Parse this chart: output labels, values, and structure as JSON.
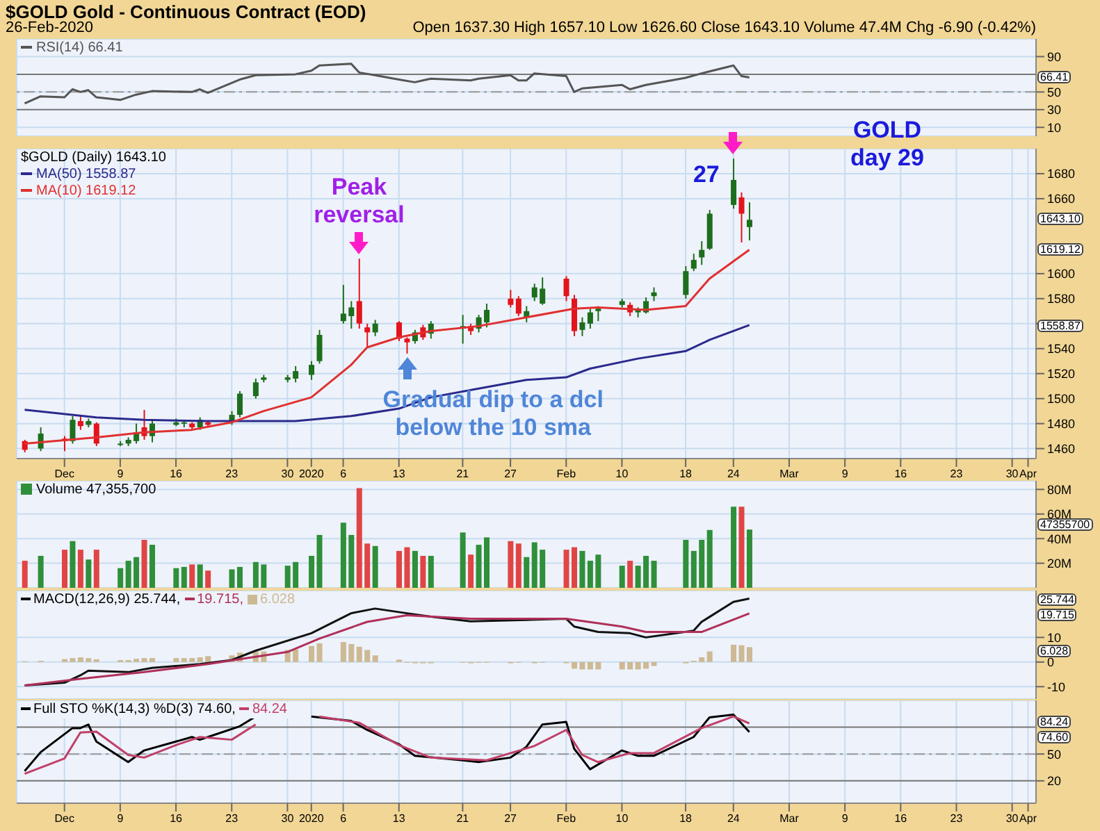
{
  "chart_data": [
    {
      "type": "line",
      "title": "$GOLD Gold - Continuous Contract (EOD)",
      "subtitle": "26-Feb-2020",
      "x": [
        "2019-11-27",
        "2019-11-29",
        "2019-12-02",
        "2019-12-03",
        "2019-12-04",
        "2019-12-05",
        "2019-12-06",
        "2019-12-09",
        "2019-12-11",
        "2019-12-13",
        "2019-12-18",
        "2019-12-19",
        "2019-12-20",
        "2019-12-24",
        "2019-12-26",
        "2019-12-31",
        "2020-01-02",
        "2020-01-03",
        "2020-01-07",
        "2020-01-08",
        "2020-01-10",
        "2020-01-13",
        "2020-01-15",
        "2020-01-16",
        "2020-01-17",
        "2020-01-22",
        "2020-01-23",
        "2020-01-27",
        "2020-01-28",
        "2020-01-29",
        "2020-01-30",
        "2020-02-03",
        "2020-02-04",
        "2020-02-05",
        "2020-02-10",
        "2020-02-11",
        "2020-02-13",
        "2020-02-18",
        "2020-02-20",
        "2020-02-24",
        "2020-02-25",
        "2020-02-26"
      ],
      "series": [
        {
          "name": "RSI(14) 66.41",
          "color": "#555555",
          "values": [
            37,
            45,
            44,
            53,
            50,
            52,
            44,
            41,
            47,
            51,
            50,
            53,
            49,
            64,
            69,
            70,
            74,
            80,
            82,
            72,
            69,
            64,
            61,
            63,
            65,
            63,
            65,
            69,
            63,
            63,
            71,
            68,
            50,
            54,
            58,
            53,
            58,
            66,
            71,
            80,
            68,
            66.41
          ]
        }
      ],
      "xlim": [
        "2019-11-26",
        "2020-04-02"
      ],
      "xticks": [
        {
          "value": "2019-12-02",
          "label": null
        },
        {
          "value": "2019-12-09",
          "label": null
        },
        {
          "value": "2019-12-16",
          "label": null
        },
        {
          "value": "2019-12-23",
          "label": null
        },
        {
          "value": "2019-12-30",
          "label": null
        },
        {
          "value": "2020-01-02",
          "label": null
        },
        {
          "value": "2020-01-06",
          "label": null
        },
        {
          "value": "2020-01-13",
          "label": null
        },
        {
          "value": "2020-01-21",
          "label": null
        },
        {
          "value": "2020-01-27",
          "label": null
        },
        {
          "value": "2020-02-03",
          "label": null
        },
        {
          "value": "2020-02-10",
          "label": null
        },
        {
          "value": "2020-02-18",
          "label": null
        },
        {
          "value": "2020-02-24",
          "label": null
        },
        {
          "value": "2020-03-02",
          "label": null
        },
        {
          "value": "2020-03-09",
          "label": null
        },
        {
          "value": "2020-03-16",
          "label": null
        },
        {
          "value": "2020-03-23",
          "label": null
        },
        {
          "value": "2020-03-30",
          "label": null
        },
        {
          "value": "2020-04-01",
          "label": null
        }
      ],
      "tick_labels": "y",
      "ylim": [
        0,
        110
      ],
      "yticks": [
        10,
        30,
        50,
        90
      ],
      "grid": true,
      "legend": "top left",
      "ref_lines": [
        {
          "axis": "y",
          "value": 70,
          "color": "#777777"
        },
        {
          "axis": "y",
          "value": 30,
          "color": "#777777"
        },
        {
          "axis": "y",
          "value": 50,
          "color": "#999999",
          "line_style": "dashed"
        }
      ],
      "annotations": [
        "Open 1637.30 High 1657.10 Low 1626.60 Close 1643.10 Volume 47.4M Chg -6.90 (-0.42%)",
        "66.41"
      ]
    },
    {
      "type": "candlestick",
      "title": "$GOLD (Daily) 1643.10",
      "x": [
        "2019-11-27",
        "2019-11-29",
        "2019-12-02",
        "2019-12-03",
        "2019-12-04",
        "2019-12-05",
        "2019-12-06",
        "2019-12-09",
        "2019-12-10",
        "2019-12-11",
        "2019-12-12",
        "2019-12-13",
        "2019-12-16",
        "2019-12-17",
        "2019-12-18",
        "2019-12-19",
        "2019-12-20",
        "2019-12-23",
        "2019-12-24",
        "2019-12-26",
        "2019-12-27",
        "2019-12-30",
        "2019-12-31",
        "2020-01-02",
        "2020-01-03",
        "2020-01-06",
        "2020-01-07",
        "2020-01-08",
        "2020-01-09",
        "2020-01-10",
        "2020-01-13",
        "2020-01-14",
        "2020-01-15",
        "2020-01-16",
        "2020-01-17",
        "2020-01-21",
        "2020-01-22",
        "2020-01-23",
        "2020-01-24",
        "2020-01-27",
        "2020-01-28",
        "2020-01-29",
        "2020-01-30",
        "2020-01-31",
        "2020-02-03",
        "2020-02-04",
        "2020-02-05",
        "2020-02-06",
        "2020-02-07",
        "2020-02-10",
        "2020-02-11",
        "2020-02-12",
        "2020-02-13",
        "2020-02-14",
        "2020-02-18",
        "2020-02-19",
        "2020-02-20",
        "2020-02-21",
        "2020-02-24",
        "2020-02-25",
        "2020-02-26"
      ],
      "ohlc": [
        [
          1466,
          1467,
          1457,
          1459
        ],
        [
          1460,
          1477,
          1458,
          1472
        ],
        [
          1468,
          1470,
          1458,
          1466
        ],
        [
          1466,
          1486,
          1464,
          1483
        ],
        [
          1482,
          1487,
          1475,
          1478
        ],
        [
          1479,
          1484,
          1477,
          1482
        ],
        [
          1480,
          1481,
          1462,
          1464
        ],
        [
          1463,
          1466,
          1462,
          1464
        ],
        [
          1464,
          1469,
          1462,
          1467
        ],
        [
          1466,
          1480,
          1464,
          1473
        ],
        [
          1477,
          1491,
          1467,
          1470
        ],
        [
          1470,
          1482,
          1465,
          1480
        ],
        [
          1479,
          1484,
          1478,
          1481
        ],
        [
          1480,
          1483,
          1477,
          1481
        ],
        [
          1480,
          1481,
          1475,
          1477
        ],
        [
          1477,
          1485,
          1475,
          1483
        ],
        [
          1481,
          1482,
          1477,
          1479
        ],
        [
          1481,
          1490,
          1479,
          1487
        ],
        [
          1487,
          1506,
          1485,
          1504
        ],
        [
          1502,
          1516,
          1500,
          1513
        ],
        [
          1515,
          1519,
          1513,
          1517
        ],
        [
          1515,
          1519,
          1513,
          1517
        ],
        [
          1516,
          1526,
          1513,
          1522
        ],
        [
          1519,
          1530,
          1515,
          1527
        ],
        [
          1530,
          1555,
          1528,
          1551
        ],
        [
          1562,
          1591,
          1560,
          1568
        ],
        [
          1566,
          1578,
          1556,
          1573
        ],
        [
          1578,
          1612,
          1556,
          1560
        ],
        [
          1557,
          1560,
          1541,
          1553
        ],
        [
          1553,
          1563,
          1550,
          1560
        ],
        [
          1561,
          1562,
          1546,
          1548
        ],
        [
          1548,
          1549,
          1536,
          1545
        ],
        [
          1546,
          1555,
          1544,
          1553
        ],
        [
          1557,
          1559,
          1547,
          1549
        ],
        [
          1552,
          1562,
          1548,
          1560
        ],
        [
          1556,
          1567,
          1544,
          1558
        ],
        [
          1558,
          1560,
          1551,
          1554
        ],
        [
          1556,
          1567,
          1553,
          1565
        ],
        [
          1561,
          1576,
          1557,
          1571
        ],
        [
          1580,
          1587,
          1573,
          1575
        ],
        [
          1580,
          1582,
          1566,
          1568
        ],
        [
          1565,
          1574,
          1561,
          1570
        ],
        [
          1581,
          1592,
          1578,
          1589
        ],
        [
          1576,
          1597,
          1575,
          1588
        ],
        [
          1596,
          1598,
          1578,
          1582
        ],
        [
          1580,
          1583,
          1550,
          1554
        ],
        [
          1555,
          1565,
          1550,
          1561
        ],
        [
          1560,
          1572,
          1556,
          1569
        ],
        [
          1570,
          1574,
          1562,
          1572
        ],
        [
          1575,
          1580,
          1573,
          1578
        ],
        [
          1575,
          1577,
          1566,
          1569
        ],
        [
          1569,
          1573,
          1565,
          1571
        ],
        [
          1569,
          1581,
          1568,
          1578
        ],
        [
          1582,
          1589,
          1578,
          1585
        ],
        [
          1583,
          1606,
          1580,
          1602
        ],
        [
          1604,
          1616,
          1602,
          1611
        ],
        [
          1613,
          1626,
          1607,
          1619
        ],
        [
          1620,
          1651,
          1619,
          1648
        ],
        [
          1655,
          1692,
          1652,
          1675
        ],
        [
          1661,
          1665,
          1625,
          1648
        ],
        [
          1637.3,
          1657.1,
          1626.6,
          1643.1
        ]
      ],
      "series": [
        {
          "name": "MA(50) 1558.87",
          "color": "#2a2a8c",
          "type": "line",
          "x": [
            "2019-11-27",
            "2019-12-06",
            "2019-12-12",
            "2019-12-20",
            "2019-12-31",
            "2020-01-07",
            "2020-01-13",
            "2020-01-17",
            "2020-01-23",
            "2020-01-29",
            "2020-02-03",
            "2020-02-06",
            "2020-02-12",
            "2020-02-18",
            "2020-02-21",
            "2020-02-26"
          ],
          "values": [
            1491,
            1485,
            1483,
            1482,
            1482,
            1486,
            1492,
            1501,
            1508,
            1515,
            1517,
            1524,
            1532,
            1538,
            1547,
            1558.87
          ]
        },
        {
          "name": "MA(10) 1619.12",
          "color": "#e03030",
          "type": "line",
          "x": [
            "2019-11-27",
            "2019-12-06",
            "2019-12-12",
            "2019-12-18",
            "2019-12-23",
            "2019-12-27",
            "2020-01-02",
            "2020-01-07",
            "2020-01-09",
            "2020-01-13",
            "2020-01-17",
            "2020-01-23",
            "2020-01-29",
            "2020-02-04",
            "2020-02-07",
            "2020-02-13",
            "2020-02-18",
            "2020-02-21",
            "2020-02-26"
          ],
          "values": [
            1464,
            1469,
            1473,
            1475,
            1481,
            1490,
            1501,
            1527,
            1541,
            1549,
            1554,
            1558,
            1565,
            1572,
            1573,
            1571,
            1574,
            1596,
            1619.12
          ]
        }
      ],
      "xlim": [
        "2019-11-26",
        "2020-04-02"
      ],
      "xticks": [
        {
          "value": "2019-12-02",
          "label": "Dec"
        },
        {
          "value": "2019-12-09",
          "label": "9"
        },
        {
          "value": "2019-12-16",
          "label": "16"
        },
        {
          "value": "2019-12-23",
          "label": "23"
        },
        {
          "value": "2019-12-30",
          "label": "30"
        },
        {
          "value": "2020-01-02",
          "label": "2020"
        },
        {
          "value": "2020-01-06",
          "label": "6"
        },
        {
          "value": "2020-01-13",
          "label": "13"
        },
        {
          "value": "2020-01-21",
          "label": "21"
        },
        {
          "value": "2020-01-27",
          "label": "27"
        },
        {
          "value": "2020-02-03",
          "label": "Feb"
        },
        {
          "value": "2020-02-10",
          "label": "10"
        },
        {
          "value": "2020-02-18",
          "label": "18"
        },
        {
          "value": "2020-02-24",
          "label": "24"
        },
        {
          "value": "2020-03-02",
          "label": "Mar"
        },
        {
          "value": "2020-03-09",
          "label": "9"
        },
        {
          "value": "2020-03-16",
          "label": "16"
        },
        {
          "value": "2020-03-23",
          "label": "23"
        },
        {
          "value": "2020-03-30",
          "label": "30"
        },
        {
          "value": "2020-04-01",
          "label": "Apr"
        }
      ],
      "ylim": [
        1452,
        1700
      ],
      "yticks": [
        1460,
        1480,
        1500,
        1520,
        1540,
        {
          "value": 1560,
          "label": null
        },
        1580,
        1600,
        1660,
        1680
      ],
      "grid": true,
      "legend": "top left",
      "annotations": [
        {
          "text": "Peak reversal",
          "x": "2020-01-08",
          "y": 1612
        },
        {
          "text": "27",
          "x": "2020-02-24",
          "y": 1692
        },
        {
          "text": "Gradual dip to a dcl below the 10 sma",
          "x": "2020-01-14",
          "y": 1536
        },
        "GOLD day 29",
        "1643.10",
        "1619.12",
        "1558.87"
      ]
    },
    {
      "type": "bar",
      "x": [
        "2019-11-27",
        "2019-11-29",
        "2019-12-02",
        "2019-12-03",
        "2019-12-04",
        "2019-12-05",
        "2019-12-06",
        "2019-12-09",
        "2019-12-10",
        "2019-12-11",
        "2019-12-12",
        "2019-12-13",
        "2019-12-16",
        "2019-12-17",
        "2019-12-18",
        "2019-12-19",
        "2019-12-20",
        "2019-12-23",
        "2019-12-24",
        "2019-12-26",
        "2019-12-27",
        "2019-12-30",
        "2019-12-31",
        "2020-01-02",
        "2020-01-03",
        "2020-01-06",
        "2020-01-07",
        "2020-01-08",
        "2020-01-09",
        "2020-01-10",
        "2020-01-13",
        "2020-01-14",
        "2020-01-15",
        "2020-01-16",
        "2020-01-17",
        "2020-01-21",
        "2020-01-22",
        "2020-01-23",
        "2020-01-24",
        "2020-01-27",
        "2020-01-28",
        "2020-01-29",
        "2020-01-30",
        "2020-01-31",
        "2020-02-03",
        "2020-02-04",
        "2020-02-05",
        "2020-02-06",
        "2020-02-07",
        "2020-02-10",
        "2020-02-11",
        "2020-02-12",
        "2020-02-13",
        "2020-02-14",
        "2020-02-18",
        "2020-02-19",
        "2020-02-20",
        "2020-02-21",
        "2020-02-24",
        "2020-02-25",
        "2020-02-26"
      ],
      "series": [
        {
          "name": "Volume 47,355,700",
          "values": [
            22,
            26,
            31,
            38,
            31,
            23,
            31,
            16,
            22,
            25,
            39,
            35,
            16,
            17,
            19,
            19,
            14,
            15,
            17,
            21,
            19,
            18,
            21,
            26,
            43,
            53,
            43,
            81,
            36,
            34,
            30,
            33,
            30,
            26,
            26,
            45,
            27,
            35,
            41,
            38,
            36,
            25,
            37,
            31,
            31,
            33,
            30,
            22,
            27,
            18,
            22,
            18,
            26,
            22,
            39,
            30,
            39,
            47,
            66,
            66,
            47.36
          ],
          "colors": [
            "#e04545",
            "#2f8f3a",
            "#e04545",
            "#2f8f3a",
            "#e04545",
            "#2f8f3a",
            "#e04545",
            "#2f8f3a",
            "#2f8f3a",
            "#2f8f3a",
            "#e04545",
            "#2f8f3a",
            "#2f8f3a",
            "#2f8f3a",
            "#e04545",
            "#2f8f3a",
            "#e04545",
            "#2f8f3a",
            "#2f8f3a",
            "#2f8f3a",
            "#2f8f3a",
            "#2f8f3a",
            "#2f8f3a",
            "#2f8f3a",
            "#2f8f3a",
            "#2f8f3a",
            "#2f8f3a",
            "#e04545",
            "#e04545",
            "#2f8f3a",
            "#e04545",
            "#e04545",
            "#2f8f3a",
            "#e04545",
            "#2f8f3a",
            "#2f8f3a",
            "#e04545",
            "#2f8f3a",
            "#2f8f3a",
            "#e04545",
            "#e04545",
            "#2f8f3a",
            "#2f8f3a",
            "#2f8f3a",
            "#e04545",
            "#e04545",
            "#2f8f3a",
            "#2f8f3a",
            "#2f8f3a",
            "#2f8f3a",
            "#e04545",
            "#2f8f3a",
            "#2f8f3a",
            "#2f8f3a",
            "#2f8f3a",
            "#2f8f3a",
            "#2f8f3a",
            "#2f8f3a",
            "#2f8f3a",
            "#e04545",
            "#2f8f3a"
          ]
        }
      ],
      "xlim": [
        "2019-11-26",
        "2020-04-02"
      ],
      "xticks": [
        {
          "value": "2019-12-02",
          "label": null
        },
        {
          "value": "2019-12-09",
          "label": null
        },
        {
          "value": "2019-12-16",
          "label": null
        },
        {
          "value": "2019-12-23",
          "label": null
        },
        {
          "value": "2019-12-30",
          "label": null
        },
        {
          "value": "2020-01-02",
          "label": null
        },
        {
          "value": "2020-01-06",
          "label": null
        },
        {
          "value": "2020-01-13",
          "label": null
        },
        {
          "value": "2020-01-21",
          "label": null
        },
        {
          "value": "2020-01-27",
          "label": null
        },
        {
          "value": "2020-02-03",
          "label": null
        },
        {
          "value": "2020-02-10",
          "label": null
        },
        {
          "value": "2020-02-18",
          "label": null
        },
        {
          "value": "2020-02-24",
          "label": null
        },
        {
          "value": "2020-03-02",
          "label": null
        },
        {
          "value": "2020-03-09",
          "label": null
        },
        {
          "value": "2020-03-16",
          "label": null
        },
        {
          "value": "2020-03-23",
          "label": null
        },
        {
          "value": "2020-03-30",
          "label": null
        },
        {
          "value": "2020-04-01",
          "label": null
        }
      ],
      "tick_labels": "y",
      "ylim": [
        0,
        87
      ],
      "yticks": [
        {
          "value": 20,
          "label": "20M"
        },
        {
          "value": 40,
          "label": "40M"
        },
        {
          "value": 60,
          "label": "60M"
        },
        {
          "value": 80,
          "label": "80M"
        }
      ],
      "grid": true,
      "legend": "top left",
      "annotations": [
        "47355700"
      ]
    },
    {
      "type": "line",
      "series": [
        {
          "name": "MACD(12,26,9) 25.744,",
          "color": "#111111",
          "x": [
            "2019-11-27",
            "2019-12-02",
            "2019-12-04",
            "2019-12-05",
            "2019-12-10",
            "2019-12-13",
            "2019-12-19",
            "2019-12-23",
            "2019-12-26",
            "2020-01-02",
            "2020-01-07",
            "2020-01-10",
            "2020-01-14",
            "2020-01-17",
            "2020-01-22",
            "2020-01-29",
            "2020-02-03",
            "2020-02-04",
            "2020-02-07",
            "2020-02-11",
            "2020-02-13",
            "2020-02-19",
            "2020-02-20",
            "2020-02-24",
            "2020-02-26"
          ],
          "values": [
            -9.5,
            -8.4,
            -5.4,
            -3.5,
            -4.1,
            -2.4,
            -0.8,
            0.8,
            4.6,
            11.7,
            19.8,
            21.7,
            19.8,
            18.4,
            16.5,
            17.1,
            17.6,
            14.4,
            12.2,
            11.7,
            10,
            12.7,
            16.3,
            24.4,
            25.744
          ]
        },
        {
          "name": "19.715,",
          "color": "#b0305a",
          "x": [
            "2019-11-27",
            "2019-12-04",
            "2019-12-12",
            "2019-12-20",
            "2019-12-30",
            "2020-01-03",
            "2020-01-09",
            "2020-01-14",
            "2020-01-22",
            "2020-02-03",
            "2020-02-10",
            "2020-02-13",
            "2020-02-20",
            "2020-02-26"
          ],
          "values": [
            -9.5,
            -6.8,
            -4.1,
            -0.8,
            4.1,
            9.5,
            16.3,
            19,
            17.6,
            17.6,
            14.4,
            12.2,
            12.2,
            19.715
          ]
        },
        {
          "name": "6.028",
          "type": "bar",
          "color": "#cdb994",
          "x": [
            "2019-11-27",
            "2019-11-29",
            "2019-12-02",
            "2019-12-03",
            "2019-12-04",
            "2019-12-05",
            "2019-12-06",
            "2019-12-09",
            "2019-12-10",
            "2019-12-11",
            "2019-12-12",
            "2019-12-13",
            "2019-12-16",
            "2019-12-17",
            "2019-12-18",
            "2019-12-19",
            "2019-12-20",
            "2019-12-23",
            "2019-12-24",
            "2019-12-26",
            "2019-12-27",
            "2019-12-30",
            "2019-12-31",
            "2020-01-02",
            "2020-01-03",
            "2020-01-06",
            "2020-01-07",
            "2020-01-08",
            "2020-01-09",
            "2020-01-10",
            "2020-01-13",
            "2020-01-14",
            "2020-01-15",
            "2020-01-16",
            "2020-01-17",
            "2020-01-21",
            "2020-01-22",
            "2020-01-23",
            "2020-01-24",
            "2020-01-27",
            "2020-01-28",
            "2020-01-29",
            "2020-01-30",
            "2020-01-31",
            "2020-02-03",
            "2020-02-04",
            "2020-02-05",
            "2020-02-06",
            "2020-02-07",
            "2020-02-10",
            "2020-02-11",
            "2020-02-12",
            "2020-02-13",
            "2020-02-14",
            "2020-02-18",
            "2020-02-19",
            "2020-02-20",
            "2020-02-21",
            "2020-02-24",
            "2020-02-25",
            "2020-02-26"
          ],
          "values": [
            0.3,
            0.5,
            1.2,
            1.6,
            1.9,
            1.6,
            1.1,
            0.8,
            0.8,
            1.3,
            1.6,
            1.6,
            1.6,
            1.6,
            1.6,
            1.9,
            2.4,
            2.7,
            3.8,
            4.3,
            4.3,
            4.9,
            5.1,
            6.5,
            7.6,
            8.1,
            7.3,
            6.2,
            4.9,
            2.7,
            1.0,
            -0.3,
            -0.5,
            -0.5,
            -0.5,
            -0.3,
            -0.5,
            -0.3,
            -0.3,
            -0.5,
            -0.3,
            0,
            -0.5,
            -0.3,
            -0.5,
            -2.7,
            -3,
            -3,
            -3,
            -3,
            -3,
            -3,
            -2.7,
            -1.6,
            -0.5,
            0.5,
            1.9,
            4.3,
            7.0,
            6.8,
            6.028
          ]
        }
      ],
      "xlim": [
        "2019-11-26",
        "2020-04-02"
      ],
      "xticks": [
        {
          "value": "2019-12-02",
          "label": null
        },
        {
          "value": "2019-12-09",
          "label": null
        },
        {
          "value": "2019-12-16",
          "label": null
        },
        {
          "value": "2019-12-23",
          "label": null
        },
        {
          "value": "2019-12-30",
          "label": null
        },
        {
          "value": "2020-01-02",
          "label": null
        },
        {
          "value": "2020-01-06",
          "label": null
        },
        {
          "value": "2020-01-13",
          "label": null
        },
        {
          "value": "2020-01-21",
          "label": null
        },
        {
          "value": "2020-01-27",
          "label": null
        },
        {
          "value": "2020-02-03",
          "label": null
        },
        {
          "value": "2020-02-10",
          "label": null
        },
        {
          "value": "2020-02-18",
          "label": null
        },
        {
          "value": "2020-02-24",
          "label": null
        },
        {
          "value": "2020-03-02",
          "label": null
        },
        {
          "value": "2020-03-09",
          "label": null
        },
        {
          "value": "2020-03-16",
          "label": null
        },
        {
          "value": "2020-03-23",
          "label": null
        },
        {
          "value": "2020-03-30",
          "label": null
        },
        {
          "value": "2020-04-01",
          "label": null
        }
      ],
      "tick_labels": "y",
      "ylim": [
        -15,
        29
      ],
      "yticks": [
        -10,
        0,
        10
      ],
      "grid": true,
      "legend": "top left",
      "annotations": [
        "25.744",
        "19.715",
        "6.028"
      ]
    },
    {
      "type": "line",
      "series": [
        {
          "name": "Full STO %K(14,3) %D(3) 74.60,",
          "color": "#000000",
          "x": [
            "2019-11-27",
            "2019-11-29",
            "2019-12-03",
            "2019-12-04",
            "2019-12-05",
            "2019-12-06",
            "2019-12-10",
            "2019-12-12",
            "2019-12-16",
            "2019-12-18",
            "2019-12-19",
            "2019-12-20",
            "2019-12-24",
            "2019-12-26",
            "2019-12-27",
            "2019-12-31",
            "2020-01-02",
            "2020-01-07",
            "2020-01-09",
            "2020-01-13",
            "2020-01-15",
            "2020-01-21",
            "2020-01-23",
            "2020-01-27",
            "2020-01-29",
            "2020-01-31",
            "2020-02-03",
            "2020-02-04",
            "2020-02-06",
            "2020-02-10",
            "2020-02-12",
            "2020-02-14",
            "2020-02-19",
            "2020-02-21",
            "2020-02-24",
            "2020-02-26"
          ],
          "values": [
            31,
            52,
            79,
            79,
            83,
            64,
            41,
            54,
            64,
            69,
            66,
            69,
            81,
            92,
            null,
            null,
            92,
            87,
            77,
            61,
            48,
            43,
            41,
            46,
            58,
            83,
            86,
            56,
            33,
            54,
            48,
            48,
            69,
            91,
            94,
            74.6
          ]
        },
        {
          "name": "84.24",
          "color": "#c0406a",
          "x": [
            "2019-11-27",
            "2019-12-02",
            "2019-12-04",
            "2019-12-06",
            "2019-12-10",
            "2019-12-12",
            "2019-12-16",
            "2019-12-19",
            "2019-12-23",
            "2019-12-26",
            "2019-12-27",
            "2019-12-31",
            "2020-01-03",
            "2020-01-08",
            "2020-01-13",
            "2020-01-17",
            "2020-01-24",
            "2020-01-30",
            "2020-02-03",
            "2020-02-05",
            "2020-02-07",
            "2020-02-11",
            "2020-02-14",
            "2020-02-20",
            "2020-02-24",
            "2020-02-26"
          ],
          "values": [
            28,
            45,
            74,
            75,
            49,
            46,
            60,
            69,
            66,
            83,
            null,
            null,
            92,
            85,
            60,
            46,
            43,
            59,
            77,
            49,
            41,
            51,
            51,
            79,
            92,
            84.24
          ]
        }
      ],
      "xlim": [
        "2019-11-26",
        "2020-04-02"
      ],
      "xticks": [
        {
          "value": "2019-12-02",
          "label": "Dec"
        },
        {
          "value": "2019-12-09",
          "label": "9"
        },
        {
          "value": "2019-12-16",
          "label": "16"
        },
        {
          "value": "2019-12-23",
          "label": "23"
        },
        {
          "value": "2019-12-30",
          "label": "30"
        },
        {
          "value": "2020-01-02",
          "label": "2020"
        },
        {
          "value": "2020-01-06",
          "label": "6"
        },
        {
          "value": "2020-01-13",
          "label": "13"
        },
        {
          "value": "2020-01-21",
          "label": "21"
        },
        {
          "value": "2020-01-27",
          "label": "27"
        },
        {
          "value": "2020-02-03",
          "label": "Feb"
        },
        {
          "value": "2020-02-10",
          "label": "10"
        },
        {
          "value": "2020-02-18",
          "label": "18"
        },
        {
          "value": "2020-02-24",
          "label": "24"
        },
        {
          "value": "2020-03-02",
          "label": "Mar"
        },
        {
          "value": "2020-03-09",
          "label": "9"
        },
        {
          "value": "2020-03-16",
          "label": "16"
        },
        {
          "value": "2020-03-23",
          "label": "23"
        },
        {
          "value": "2020-03-30",
          "label": "30"
        },
        {
          "value": "2020-04-01",
          "label": "Apr"
        }
      ],
      "ylim": [
        -5,
        110
      ],
      "yticks": [
        20,
        50
      ],
      "grid": true,
      "legend": "top left",
      "ref_lines": [
        {
          "axis": "y",
          "value": 80,
          "color": "#777777"
        },
        {
          "axis": "y",
          "value": 20,
          "color": "#777777"
        },
        {
          "axis": "y",
          "value": 50,
          "color": "#999999",
          "line_style": "dashed"
        }
      ],
      "annotations": [
        "84.24",
        "74.60"
      ]
    }
  ]
}
